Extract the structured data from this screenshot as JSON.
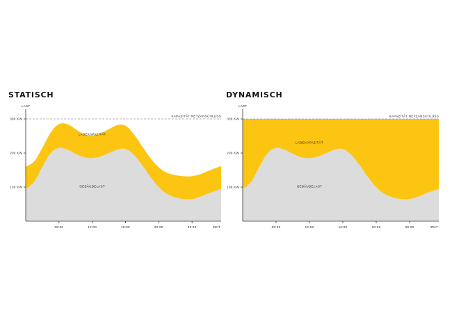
{
  "chart_data": [
    {
      "type": "area",
      "title": "STATISCH",
      "ylabel": "LAST",
      "xlabel": "ZEIT",
      "ylim": [
        0,
        300
      ],
      "yticks": [
        100,
        200,
        300
      ],
      "ytick_labels": [
        "100 KW",
        "200 KW",
        "300 KW"
      ],
      "xticks": [
        8,
        12,
        16,
        20,
        24
      ],
      "xtick_labels": [
        "08:00",
        "12:00",
        "16:00",
        "20:00",
        "00:00"
      ],
      "xlim": [
        4,
        27.5
      ],
      "capacity_line": {
        "value": 300,
        "label": "KAPAZITÄT NETZANSCHLUSS"
      },
      "series": [
        {
          "name": "GEBÄUDELAST",
          "x": [
            4,
            5,
            6,
            7,
            8,
            9,
            10,
            11,
            12,
            13,
            14,
            15,
            16,
            17,
            18,
            19,
            20,
            21,
            22,
            23,
            24,
            25,
            26,
            27.5
          ],
          "values": [
            95,
            115,
            160,
            200,
            215,
            210,
            198,
            188,
            185,
            190,
            200,
            210,
            212,
            195,
            165,
            130,
            100,
            80,
            70,
            65,
            65,
            72,
            82,
            95
          ]
        },
        {
          "name": "LADEKAPAZITÄT",
          "x": [
            4,
            5,
            6,
            7,
            8,
            9,
            10,
            11,
            12,
            13,
            14,
            15,
            16,
            17,
            18,
            19,
            20,
            21,
            22,
            23,
            24,
            25,
            26,
            27.5
          ],
          "values": [
            160,
            175,
            215,
            260,
            285,
            285,
            270,
            255,
            252,
            258,
            270,
            282,
            280,
            255,
            220,
            185,
            158,
            142,
            135,
            132,
            132,
            138,
            148,
            162
          ]
        }
      ],
      "colors": {
        "building": "#dcdcdc",
        "charging": "#fcc511",
        "capacity_line": "#9a9a9a"
      }
    },
    {
      "type": "area",
      "title": "DYNAMISCH",
      "ylabel": "LAST",
      "xlabel": "ZEIT",
      "ylim": [
        0,
        300
      ],
      "yticks": [
        100,
        200,
        300
      ],
      "ytick_labels": [
        "100 KW",
        "200 KW",
        "300 KW"
      ],
      "xticks": [
        8,
        12,
        16,
        20,
        24
      ],
      "xtick_labels": [
        "08:00",
        "12:00",
        "16:00",
        "20:00",
        "00:00"
      ],
      "xlim": [
        4,
        27.5
      ],
      "capacity_line": {
        "value": 300,
        "label": "KAPAZITÄT NETZANSCHLUSS"
      },
      "series": [
        {
          "name": "GEBÄUDELAST",
          "x": [
            4,
            5,
            6,
            7,
            8,
            9,
            10,
            11,
            12,
            13,
            14,
            15,
            16,
            17,
            18,
            19,
            20,
            21,
            22,
            23,
            24,
            25,
            26,
            27.5
          ],
          "values": [
            95,
            115,
            160,
            200,
            215,
            210,
            198,
            188,
            185,
            190,
            200,
            210,
            212,
            195,
            165,
            130,
            100,
            80,
            70,
            65,
            65,
            72,
            82,
            95
          ]
        },
        {
          "name": "LADEKAPAZITÄT",
          "x": [
            4,
            27.5
          ],
          "values": [
            300,
            300
          ]
        }
      ],
      "colors": {
        "building": "#dcdcdc",
        "charging": "#fcc511",
        "capacity_line": "#9a9a9a"
      }
    }
  ]
}
